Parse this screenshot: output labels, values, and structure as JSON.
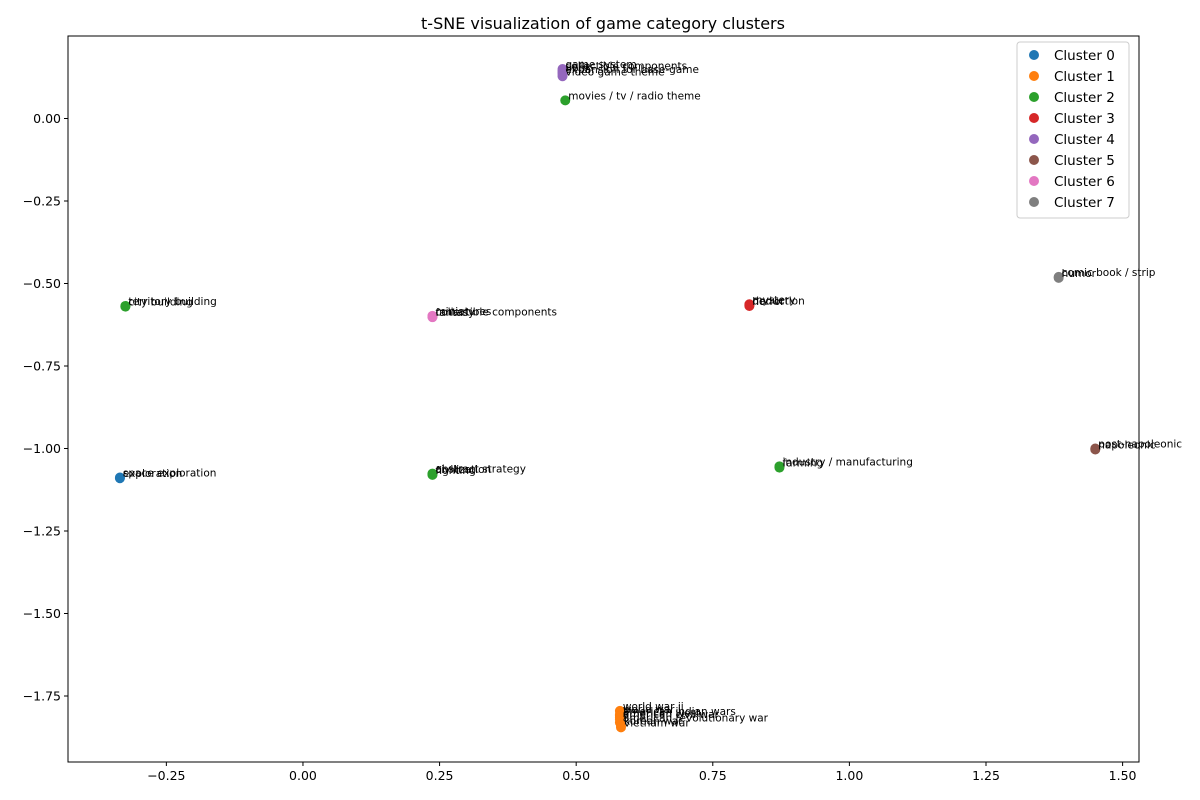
{
  "chart_data": {
    "type": "scatter",
    "title": "t-SNE visualization of game category clusters",
    "xlabel": "",
    "ylabel": "",
    "xlim": [
      -0.43,
      1.53
    ],
    "ylim": [
      -1.95,
      0.25
    ],
    "xticks": [
      -0.25,
      0.0,
      0.25,
      0.5,
      0.75,
      1.0,
      1.25,
      1.5
    ],
    "xtick_labels": [
      "−0.25",
      "0.00",
      "0.25",
      "0.50",
      "0.75",
      "1.00",
      "1.25",
      "1.50"
    ],
    "yticks": [
      0.0,
      -0.25,
      -0.5,
      -0.75,
      -1.0,
      -1.25,
      -1.5,
      -1.75
    ],
    "ytick_labels": [
      "0.00",
      "−0.25",
      "−0.50",
      "−0.75",
      "−1.00",
      "−1.25",
      "−1.50",
      "−1.75"
    ],
    "grid": false,
    "legend_position": "top-right",
    "series": [
      {
        "name": "Cluster 0",
        "color": "#1f77b4",
        "points": [
          {
            "x": -0.335,
            "y": -1.088,
            "label": "space exploration"
          },
          {
            "x": -0.335,
            "y": -1.09,
            "label": "exploration"
          }
        ]
      },
      {
        "name": "Cluster 1",
        "color": "#ff7f0e",
        "points": [
          {
            "x": 0.58,
            "y": -1.795,
            "label": "world war ii"
          },
          {
            "x": 0.58,
            "y": -1.805,
            "label": "world war i"
          },
          {
            "x": 0.58,
            "y": -1.81,
            "label": "american indian wars"
          },
          {
            "x": 0.58,
            "y": -1.815,
            "label": "american west"
          },
          {
            "x": 0.58,
            "y": -1.82,
            "label": "american civil war"
          },
          {
            "x": 0.58,
            "y": -1.83,
            "label": "american revolutionary war"
          },
          {
            "x": 0.582,
            "y": -1.84,
            "label": "korean war"
          },
          {
            "x": 0.582,
            "y": -1.845,
            "label": "vietnam war"
          }
        ]
      },
      {
        "name": "Cluster 2",
        "color": "#2ca02c",
        "points": [
          {
            "x": 0.48,
            "y": 0.055,
            "label": "movies / tv / radio theme"
          },
          {
            "x": -0.325,
            "y": -0.568,
            "label": "territory building"
          },
          {
            "x": -0.325,
            "y": -0.57,
            "label": "city building"
          },
          {
            "x": 0.237,
            "y": -1.076,
            "label": "abstract strategy"
          },
          {
            "x": 0.237,
            "y": -1.078,
            "label": "civilization"
          },
          {
            "x": 0.237,
            "y": -1.08,
            "label": "fighting"
          },
          {
            "x": 0.872,
            "y": -1.054,
            "label": "industry / manufacturing"
          },
          {
            "x": 0.872,
            "y": -1.058,
            "label": "farming"
          }
        ]
      },
      {
        "name": "Cluster 3",
        "color": "#d62728",
        "points": [
          {
            "x": 0.817,
            "y": -0.563,
            "label": "mystery"
          },
          {
            "x": 0.817,
            "y": -0.566,
            "label": "deduction"
          },
          {
            "x": 0.817,
            "y": -0.568,
            "label": "horror"
          }
        ]
      },
      {
        "name": "Cluster 4",
        "color": "#9467bd",
        "points": [
          {
            "x": 0.475,
            "y": 0.15,
            "label": "game system"
          },
          {
            "x": 0.475,
            "y": 0.145,
            "label": "collectible components"
          },
          {
            "x": 0.475,
            "y": 0.14,
            "label": "book"
          },
          {
            "x": 0.475,
            "y": 0.135,
            "label": "expansion for base-game"
          },
          {
            "x": 0.475,
            "y": 0.128,
            "label": "video game theme"
          }
        ]
      },
      {
        "name": "Cluster 5",
        "color": "#8c564b",
        "points": [
          {
            "x": 1.45,
            "y": -1.0,
            "label": "post-napoleonic"
          },
          {
            "x": 1.45,
            "y": -1.003,
            "label": "napoleonic"
          }
        ]
      },
      {
        "name": "Cluster 6",
        "color": "#e377c2",
        "points": [
          {
            "x": 0.237,
            "y": -0.598,
            "label": "miniatures"
          },
          {
            "x": 0.237,
            "y": -0.6,
            "label": "collectible components"
          },
          {
            "x": 0.237,
            "y": -0.602,
            "label": "fantasy"
          }
        ]
      },
      {
        "name": "Cluster 7",
        "color": "#7f7f7f",
        "points": [
          {
            "x": 1.383,
            "y": -0.48,
            "label": "comic book / strip"
          },
          {
            "x": 1.383,
            "y": -0.483,
            "label": "humor"
          }
        ]
      }
    ]
  }
}
